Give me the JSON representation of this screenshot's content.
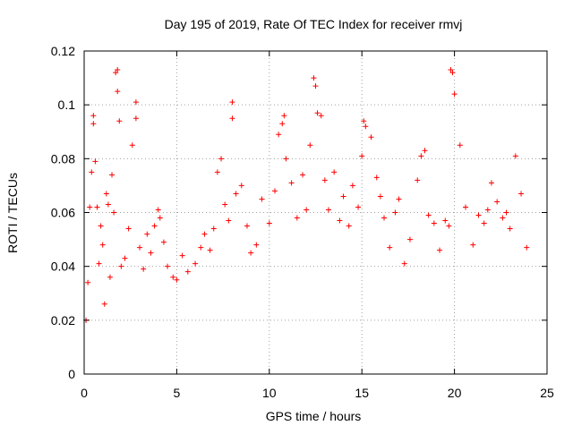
{
  "chart_data": {
    "type": "scatter",
    "title": "Day 195 of 2019, Rate Of TEC Index for receiver rmvj",
    "xlabel": "GPS time / hours",
    "ylabel": "ROTI / TECUs",
    "xlim": [
      0,
      25
    ],
    "ylim": [
      0,
      0.12
    ],
    "x_ticks": [
      0,
      5,
      10,
      15,
      20,
      25
    ],
    "x_tick_labels": [
      "0",
      "5",
      "10",
      "15",
      "20",
      "25"
    ],
    "y_ticks": [
      0,
      0.02,
      0.04,
      0.06,
      0.08,
      0.1,
      0.12
    ],
    "y_tick_labels": [
      "0",
      "0.02",
      "0.04",
      "0.06",
      "0.08",
      "0.1",
      "0.12"
    ],
    "grid": true,
    "marker": "+",
    "series": [
      {
        "name": "ROTI",
        "color": "#ff0000",
        "x": [
          0.1,
          0.2,
          0.3,
          0.4,
          0.5,
          0.5,
          0.6,
          0.7,
          0.8,
          0.9,
          1.0,
          1.1,
          1.2,
          1.3,
          1.4,
          1.5,
          1.6,
          1.7,
          1.8,
          1.8,
          1.9,
          2.0,
          2.2,
          2.4,
          2.6,
          2.8,
          2.8,
          3.0,
          3.2,
          3.4,
          3.6,
          3.8,
          4.0,
          4.1,
          4.3,
          4.5,
          4.8,
          5.0,
          5.3,
          5.6,
          6.0,
          6.3,
          6.5,
          6.8,
          7.0,
          7.2,
          7.4,
          7.6,
          7.8,
          8.0,
          8.0,
          8.2,
          8.5,
          8.8,
          9.0,
          9.3,
          9.6,
          10.0,
          10.3,
          10.5,
          10.7,
          10.8,
          10.9,
          11.2,
          11.5,
          11.8,
          12.0,
          12.2,
          12.4,
          12.5,
          12.6,
          12.8,
          13.0,
          13.2,
          13.5,
          13.8,
          14.0,
          14.3,
          14.5,
          14.8,
          15.0,
          15.1,
          15.2,
          15.5,
          15.8,
          16.0,
          16.2,
          16.5,
          16.8,
          17.0,
          17.3,
          17.6,
          18.0,
          18.2,
          18.4,
          18.6,
          18.9,
          19.2,
          19.5,
          19.7,
          19.8,
          19.9,
          20.0,
          20.3,
          20.6,
          21.0,
          21.3,
          21.6,
          21.8,
          22.0,
          22.3,
          22.6,
          22.8,
          23.0,
          23.3,
          23.6,
          23.9
        ],
        "y": [
          0.02,
          0.034,
          0.062,
          0.075,
          0.096,
          0.093,
          0.079,
          0.062,
          0.041,
          0.055,
          0.048,
          0.026,
          0.067,
          0.063,
          0.036,
          0.074,
          0.06,
          0.112,
          0.113,
          0.105,
          0.094,
          0.04,
          0.043,
          0.054,
          0.085,
          0.101,
          0.095,
          0.047,
          0.039,
          0.052,
          0.045,
          0.055,
          0.061,
          0.058,
          0.049,
          0.04,
          0.036,
          0.035,
          0.044,
          0.038,
          0.041,
          0.047,
          0.052,
          0.046,
          0.054,
          0.075,
          0.08,
          0.063,
          0.057,
          0.101,
          0.095,
          0.067,
          0.07,
          0.055,
          0.045,
          0.048,
          0.065,
          0.056,
          0.068,
          0.089,
          0.093,
          0.096,
          0.08,
          0.071,
          0.058,
          0.074,
          0.061,
          0.085,
          0.11,
          0.107,
          0.097,
          0.096,
          0.072,
          0.061,
          0.075,
          0.057,
          0.066,
          0.055,
          0.07,
          0.062,
          0.081,
          0.094,
          0.092,
          0.088,
          0.073,
          0.066,
          0.058,
          0.047,
          0.06,
          0.065,
          0.041,
          0.05,
          0.072,
          0.081,
          0.083,
          0.059,
          0.056,
          0.046,
          0.057,
          0.055,
          0.113,
          0.112,
          0.104,
          0.085,
          0.062,
          0.048,
          0.059,
          0.056,
          0.061,
          0.071,
          0.064,
          0.058,
          0.06,
          0.054,
          0.081,
          0.067,
          0.047
        ]
      }
    ]
  }
}
